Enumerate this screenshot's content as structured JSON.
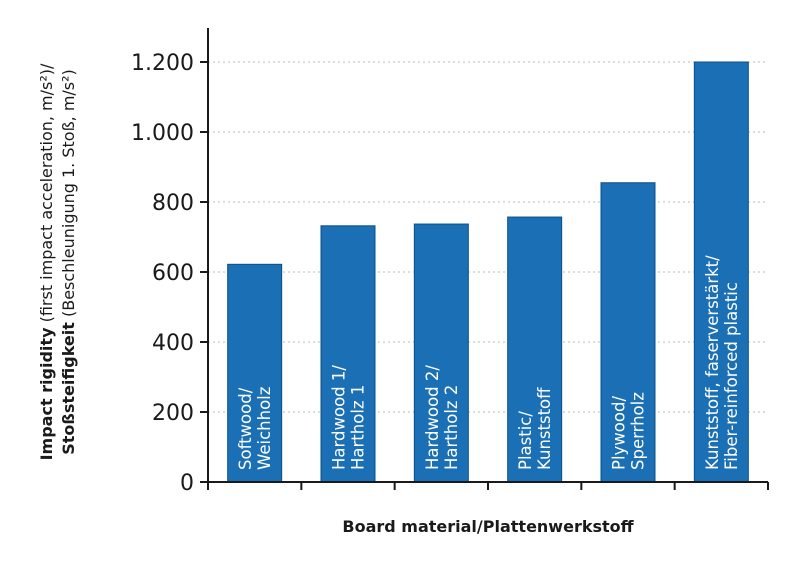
{
  "chart_data": {
    "type": "bar",
    "categories": [
      [
        "Softwood/",
        "Weichholz"
      ],
      [
        "Hardwood 1/",
        "Hartholz 1"
      ],
      [
        "Hardwood 2/",
        "Hartholz 2"
      ],
      [
        "Plastic/",
        "Kunststoff"
      ],
      [
        "Plywood/",
        "Sperrholz"
      ],
      [
        "Kunststoff, faserverstärkt/",
        "Fiber-reinforced plastic"
      ]
    ],
    "values": [
      622,
      732,
      737,
      757,
      855,
      1200
    ],
    "ylim": [
      0,
      1300
    ],
    "yticks": [
      0,
      200,
      400,
      600,
      800,
      1000,
      1200
    ],
    "ytick_labels": [
      "0",
      "200",
      "400",
      "600",
      "800",
      "1.000",
      "1.200"
    ],
    "xlabel": "Board material/Plattenwerkstoff",
    "ylabel": {
      "line1_bold": "Impact rigidity",
      "line1_normal": " (first impact acceleration, m/s²)/",
      "line2_bold": "Stoßsteifigkeit",
      "line2_normal": " (Beschleunigung 1. Stoß, m/s²)"
    },
    "grid": "horizontal-dotted",
    "bar_color": "#1a6fb5",
    "bar_edge_color": "#0d4f86"
  }
}
